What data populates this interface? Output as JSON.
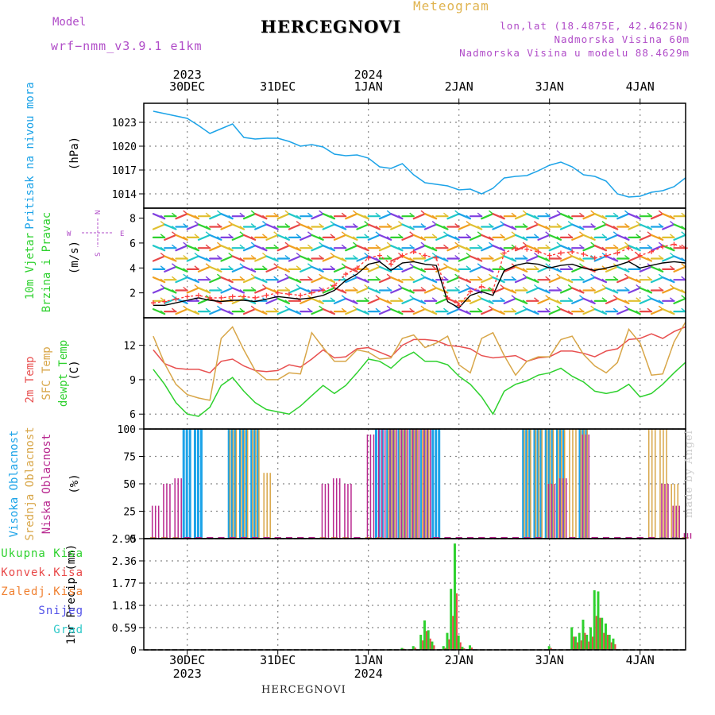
{
  "header": {
    "model_label": "Model",
    "model_name": "wrf−nmm_v3.9.1 e1km",
    "title": "HERCEGNOVI",
    "meteogram": "Meteogram",
    "lonlat": "lon,lat (18.4875E, 42.4625N)",
    "elev": "Nadmorska Visina 60m",
    "elev_model": "Nadmorska Visina u modelu 88.4629m"
  },
  "footer": "HERCEGNOVI",
  "madeby": "made by Angel",
  "chart_data": [
    {
      "type": "line",
      "panel": "pressure",
      "ylabel": "Pritisak na nivou mora",
      "units": "(hPa)",
      "yticks": [
        "1014",
        "1017",
        "1020",
        "1023"
      ],
      "ylim": [
        1012.2,
        1025.4
      ],
      "x": [
        "12/29 15h",
        "12/29 18h",
        "12/29 21h",
        "12/30 00h",
        "12/30 03h",
        "12/30 06h",
        "12/30 09h",
        "12/30 12h",
        "12/30 15h",
        "12/30 18h",
        "12/30 21h",
        "12/31 00h",
        "12/31 03h",
        "12/31 06h",
        "12/31 09h",
        "12/31 12h",
        "12/31 15h",
        "12/31 18h",
        "12/31 21h",
        "01/01 00h",
        "01/01 03h",
        "01/01 06h",
        "01/01 09h",
        "01/01 12h",
        "01/01 15h",
        "01/01 18h",
        "01/01 21h",
        "01/02 00h",
        "01/02 03h",
        "01/02 06h",
        "01/02 09h",
        "01/02 12h",
        "01/02 15h",
        "01/02 18h",
        "01/02 21h",
        "01/03 00h",
        "01/03 03h",
        "01/03 06h",
        "01/03 09h",
        "01/03 12h",
        "01/03 15h",
        "01/03 18h",
        "01/03 21h",
        "01/04 00h",
        "01/04 03h",
        "01/04 06h",
        "01/04 09h",
        "01/04 12h"
      ],
      "series": [
        {
          "color": "#1ca3e8",
          "values": [
            1024.4,
            1024.1,
            1023.8,
            1023.5,
            1022.6,
            1021.6,
            1022.2,
            1022.8,
            1021.1,
            1020.9,
            1021.0,
            1021.0,
            1020.6,
            1020.0,
            1020.2,
            1019.9,
            1019.0,
            1018.8,
            1018.9,
            1018.5,
            1017.4,
            1017.2,
            1017.8,
            1016.4,
            1015.4,
            1015.2,
            1015.0,
            1014.5,
            1014.6,
            1014.0,
            1014.7,
            1016.0,
            1016.2,
            1016.3,
            1016.9,
            1017.6,
            1018.0,
            1017.4,
            1016.4,
            1016.2,
            1015.6,
            1014.0,
            1013.6,
            1013.7,
            1014.2,
            1014.4,
            1014.9,
            1016.0
          ]
        }
      ],
      "x_day_labels": [
        "30DEC",
        "31DEC",
        "1JAN",
        "2JAN",
        "3JAN",
        "4JAN"
      ],
      "x_year_labels": [
        "2023",
        "2024"
      ]
    },
    {
      "type": "line",
      "panel": "wind",
      "ylabel_1": "10m Vjetar",
      "ylabel_2": "Brzina i Pravac",
      "units": "(m/s)",
      "compass": {
        "n": "N",
        "s": "S",
        "w": "W",
        "e": "E"
      },
      "yticks": [
        "2",
        "4",
        "6",
        "8"
      ],
      "ylim": [
        0,
        8.8
      ],
      "series": [
        {
          "name": "speed",
          "color": "#000000",
          "values": [
            1.0,
            1.0,
            1.2,
            1.4,
            1.6,
            1.4,
            1.3,
            1.4,
            1.4,
            1.3,
            1.5,
            1.7,
            1.6,
            1.5,
            1.6,
            1.8,
            2.2,
            3.0,
            3.5,
            4.3,
            4.5,
            3.8,
            4.4,
            4.5,
            4.3,
            4.2,
            1.3,
            0.8,
            1.8,
            2.1,
            1.8,
            3.8,
            4.2,
            4.4,
            4.3,
            4.0,
            4.2,
            4.3,
            4.0,
            3.8,
            4.0,
            4.2,
            4.5,
            4.0,
            4.2,
            4.4,
            4.5,
            4.4
          ]
        },
        {
          "name": "gust",
          "color": "#ff3a3a",
          "values": [
            1.2,
            1.3,
            1.5,
            1.7,
            1.8,
            1.6,
            1.6,
            1.7,
            1.7,
            1.6,
            1.8,
            2.0,
            1.9,
            1.8,
            2.0,
            2.2,
            2.6,
            3.5,
            4.0,
            4.8,
            5.0,
            4.3,
            5.0,
            5.3,
            5.0,
            4.8,
            1.6,
            1.0,
            2.1,
            2.5,
            2.2,
            5.2,
            5.6,
            5.5,
            5.3,
            5.0,
            5.2,
            5.3,
            5.1,
            4.8,
            5.0,
            5.2,
            5.6,
            5.0,
            5.3,
            5.7,
            5.9,
            5.6
          ]
        }
      ]
    },
    {
      "type": "line",
      "panel": "temperature",
      "ylabel_2m": "2m Temp",
      "ylabel_sfc": "SFC Temp",
      "ylabel_dew": "dewpt Temp",
      "units": "(C)",
      "yticks": [
        "6",
        "9",
        "12"
      ],
      "ylim": [
        4.7,
        14.4
      ],
      "series": [
        {
          "name": "2m Temp",
          "color": "#e85050",
          "values": [
            11.6,
            10.4,
            10.0,
            9.9,
            9.9,
            9.6,
            10.6,
            10.8,
            10.2,
            9.8,
            9.7,
            9.8,
            10.3,
            10.1,
            10.8,
            11.6,
            10.9,
            11.0,
            11.7,
            11.8,
            11.4,
            11.0,
            12.0,
            12.5,
            12.5,
            12.4,
            12.0,
            11.9,
            11.7,
            11.1,
            10.9,
            11.0,
            11.1,
            10.6,
            10.9,
            11.0,
            11.5,
            11.5,
            11.3,
            11.0,
            11.5,
            11.7,
            12.5,
            12.6,
            13.0,
            12.6,
            13.2,
            13.6
          ]
        },
        {
          "name": "SFC Temp",
          "color": "#d8a648",
          "values": [
            12.8,
            10.4,
            8.6,
            7.7,
            7.4,
            7.2,
            12.6,
            13.6,
            11.6,
            9.8,
            9.0,
            9.0,
            9.6,
            9.5,
            13.1,
            11.8,
            10.6,
            10.6,
            11.6,
            11.4,
            10.8,
            10.9,
            12.6,
            12.9,
            11.8,
            12.2,
            12.8,
            10.3,
            9.6,
            12.6,
            13.1,
            11.1,
            9.4,
            10.6,
            11.0,
            11.0,
            12.5,
            12.8,
            11.2,
            10.2,
            9.6,
            10.5,
            13.4,
            12.2,
            9.4,
            9.5,
            12.3,
            14.0
          ]
        },
        {
          "name": "dewpt Temp",
          "color": "#2ed12e",
          "values": [
            9.9,
            8.6,
            7.0,
            6.0,
            5.8,
            6.6,
            8.5,
            9.2,
            8.0,
            7.0,
            6.4,
            6.2,
            6.0,
            6.7,
            7.6,
            8.5,
            7.8,
            8.5,
            9.6,
            10.8,
            10.6,
            10.0,
            10.9,
            11.4,
            10.6,
            10.6,
            10.3,
            9.3,
            8.6,
            7.5,
            6.0,
            8.0,
            8.6,
            8.9,
            9.4,
            9.6,
            10.0,
            9.3,
            8.8,
            8.0,
            7.8,
            8.0,
            8.6,
            7.5,
            7.8,
            8.6,
            9.6,
            10.5
          ]
        }
      ]
    },
    {
      "type": "bar",
      "panel": "clouds",
      "ylabel_high": "Visoka Oblacnost",
      "ylabel_mid": "Srednja Oblacnost",
      "ylabel_low": "Niska Oblacnost",
      "units": "(%)",
      "yticks": [
        "0",
        "25",
        "50",
        "75",
        "100"
      ],
      "ylim": [
        0,
        100
      ],
      "series": [
        {
          "name": "Visoka Oblacnost",
          "color": "#1ca3e8",
          "values": [
            0,
            0,
            0,
            100,
            100,
            0,
            0,
            100,
            100,
            100,
            0,
            0,
            0,
            0,
            0,
            0,
            0,
            0,
            0,
            0,
            100,
            100,
            100,
            100,
            100,
            100,
            0,
            0,
            0,
            0,
            0,
            0,
            0,
            100,
            100,
            100,
            100,
            0,
            100,
            0,
            0,
            0,
            0,
            0,
            0,
            0,
            0,
            0
          ]
        },
        {
          "name": "Srednja Oblacnost",
          "color": "#d8a648",
          "values": [
            0,
            0,
            0,
            0,
            0,
            0,
            0,
            100,
            100,
            100,
            60,
            0,
            0,
            0,
            0,
            0,
            0,
            0,
            0,
            0,
            0,
            100,
            100,
            100,
            100,
            0,
            0,
            0,
            0,
            0,
            0,
            0,
            0,
            100,
            100,
            100,
            100,
            100,
            100,
            0,
            0,
            0,
            0,
            0,
            100,
            100,
            50,
            0
          ]
        },
        {
          "name": "Niska Oblacnost",
          "color": "#b8288f",
          "values": [
            30,
            50,
            55,
            0,
            0,
            0,
            0,
            0,
            0,
            0,
            0,
            0,
            0,
            0,
            0,
            50,
            55,
            50,
            0,
            95,
            100,
            100,
            100,
            100,
            100,
            0,
            0,
            0,
            0,
            0,
            0,
            0,
            0,
            0,
            0,
            50,
            55,
            0,
            95,
            0,
            0,
            0,
            0,
            0,
            0,
            50,
            30,
            5
          ]
        }
      ]
    },
    {
      "type": "bar",
      "panel": "precip",
      "ylabel": "1hr Precip (mm)",
      "legend": [
        {
          "name": "Ukupna Kisa",
          "color": "#2ed12e"
        },
        {
          "name": "Konvek.Kisa",
          "color": "#e84848"
        },
        {
          "name": "Zaledj.Kisa",
          "color": "#f08030"
        },
        {
          "name": "Snijeg",
          "color": "#5050e8"
        },
        {
          "name": "Grad",
          "color": "#2ec8c8"
        }
      ],
      "yticks": [
        "0",
        "0.59",
        "1.18",
        "1.77",
        "2.36",
        "2.95"
      ],
      "ylim": [
        0,
        2.95
      ],
      "bars": [
        {
          "x": "01/01 06h",
          "total": 0.02,
          "conv": 0.01
        },
        {
          "x": "01/01 09h",
          "total": 0.05,
          "conv": 0.03
        },
        {
          "x": "01/01 12h",
          "total": 0.1,
          "conv": 0.06
        },
        {
          "x": "01/01 14h",
          "total": 0.4,
          "conv": 0.25
        },
        {
          "x": "01/01 15h",
          "total": 0.78,
          "conv": 0.5
        },
        {
          "x": "01/01 16h",
          "total": 0.52,
          "conv": 0.3
        },
        {
          "x": "01/01 17h",
          "total": 0.22,
          "conv": 0.12
        },
        {
          "x": "01/01 20h",
          "total": 0.1,
          "conv": 0.05
        },
        {
          "x": "01/01 21h",
          "total": 0.45,
          "conv": 0.28
        },
        {
          "x": "01/01 22h",
          "total": 1.62,
          "conv": 0.9
        },
        {
          "x": "01/01 23h",
          "total": 2.82,
          "conv": 1.5
        },
        {
          "x": "01/02 00h",
          "total": 0.38,
          "conv": 0.2
        },
        {
          "x": "01/02 01h",
          "total": 0.08,
          "conv": 0.04
        },
        {
          "x": "01/02 03h",
          "total": 0.12,
          "conv": 0.06
        },
        {
          "x": "01/03 00h",
          "total": 0.1,
          "conv": 0.05
        },
        {
          "x": "01/03 06h",
          "total": 0.6,
          "conv": 0.35
        },
        {
          "x": "01/03 07h",
          "total": 0.35,
          "conv": 0.2
        },
        {
          "x": "01/03 08h",
          "total": 0.45,
          "conv": 0.25
        },
        {
          "x": "01/03 09h",
          "total": 0.8,
          "conv": 0.45
        },
        {
          "x": "01/03 10h",
          "total": 0.4,
          "conv": 0.22
        },
        {
          "x": "01/03 11h",
          "total": 0.6,
          "conv": 0.35
        },
        {
          "x": "01/03 12h",
          "total": 1.58,
          "conv": 0.9
        },
        {
          "x": "01/03 13h",
          "total": 1.55,
          "conv": 0.85
        },
        {
          "x": "01/03 14h",
          "total": 0.85,
          "conv": 0.45
        },
        {
          "x": "01/03 15h",
          "total": 0.7,
          "conv": 0.4
        },
        {
          "x": "01/03 16h",
          "total": 0.4,
          "conv": 0.2
        },
        {
          "x": "01/03 17h",
          "total": 0.3,
          "conv": 0.15
        }
      ]
    }
  ]
}
